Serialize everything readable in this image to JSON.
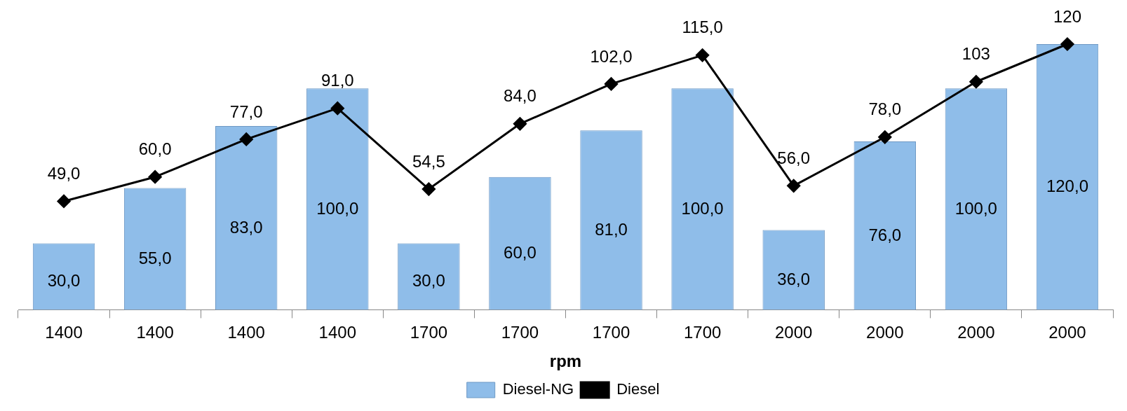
{
  "chart_data": {
    "type": "bar",
    "xlabel": "rpm",
    "categories": [
      "1400",
      "1400",
      "1400",
      "1400",
      "1700",
      "1700",
      "1700",
      "1700",
      "2000",
      "2000",
      "2000",
      "2000"
    ],
    "series": [
      {
        "name": "Diesel-NG",
        "color": "#8fbde9",
        "values": [
          30,
          55,
          83,
          100,
          30,
          60,
          81,
          100,
          36,
          76,
          100,
          120
        ],
        "value_labels": [
          "30,0",
          "55,0",
          "83,0",
          "100,0",
          "30,0",
          "60,0",
          "81,0",
          "100,0",
          "36,0",
          "76,0",
          "100,0",
          "120,0"
        ]
      },
      {
        "name": "Diesel",
        "type": "line",
        "color": "#000000",
        "values": [
          49,
          60,
          77,
          91,
          54.5,
          84,
          102,
          115,
          56,
          78,
          103,
          120
        ],
        "value_labels": [
          "49,0",
          "60,0",
          "77,0",
          "91,0",
          "54,5",
          "84,0",
          "102,0",
          "115,0",
          "56,0",
          "78,0",
          "103",
          "120"
        ]
      }
    ],
    "relative": false,
    "grid": false,
    "legend": "bottom",
    "marker": "diamond",
    "line_style": "solid"
  }
}
